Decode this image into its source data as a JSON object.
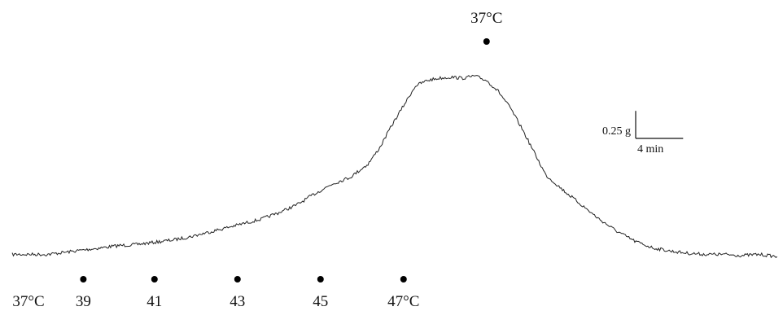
{
  "chart_data": {
    "type": "line",
    "title": "",
    "xlabel": "",
    "ylabel": "",
    "series": [
      {
        "values": [
          [
            0,
            0.0
          ],
          [
            1.5,
            0.0
          ],
          [
            3,
            0.0
          ],
          [
            4.5,
            0.02
          ],
          [
            6,
            0.04
          ],
          [
            7.5,
            0.06
          ],
          [
            9,
            0.08
          ],
          [
            10.5,
            0.09
          ],
          [
            12,
            0.11
          ],
          [
            13.5,
            0.13
          ],
          [
            15,
            0.16
          ],
          [
            16.5,
            0.2
          ],
          [
            18,
            0.24
          ],
          [
            19.5,
            0.28
          ],
          [
            21,
            0.32
          ],
          [
            22.5,
            0.38
          ],
          [
            24,
            0.45
          ],
          [
            25.5,
            0.55
          ],
          [
            27,
            0.64
          ],
          [
            28.5,
            0.7
          ],
          [
            30,
            0.82
          ],
          [
            31,
            0.97
          ],
          [
            32,
            1.17
          ],
          [
            33,
            1.35
          ],
          [
            34,
            1.53
          ],
          [
            35,
            1.58
          ],
          [
            36,
            1.6
          ],
          [
            37,
            1.61
          ],
          [
            38,
            1.6
          ],
          [
            39,
            1.62
          ],
          [
            40,
            1.58
          ],
          [
            41,
            1.48
          ],
          [
            42,
            1.33
          ],
          [
            43,
            1.14
          ],
          [
            44,
            0.93
          ],
          [
            45,
            0.72
          ],
          [
            46.5,
            0.58
          ],
          [
            48,
            0.45
          ],
          [
            49.5,
            0.32
          ],
          [
            51,
            0.21
          ],
          [
            52.5,
            0.12
          ],
          [
            54,
            0.06
          ],
          [
            55.5,
            0.03
          ],
          [
            57,
            0.01
          ],
          [
            58.5,
            0.0
          ],
          [
            60,
            0.0
          ],
          [
            61.5,
            -0.01
          ],
          [
            63,
            0.0
          ],
          [
            64.5,
            -0.02
          ]
        ]
      }
    ],
    "temperature_marks": [
      {
        "label": "37°C",
        "x": 0,
        "dot": false
      },
      {
        "label": "39",
        "x": 6,
        "dot": true
      },
      {
        "label": "41",
        "x": 12,
        "dot": true
      },
      {
        "label": "43",
        "x": 19,
        "dot": true
      },
      {
        "label": "45",
        "x": 26,
        "dot": true
      },
      {
        "label": "47°C",
        "x": 33,
        "dot": true
      }
    ],
    "top_mark": {
      "label": "37°C",
      "x": 40,
      "dot": true
    },
    "scale_bar": {
      "y_value": 0.25,
      "y_label": "0.25 g",
      "x_value": 4,
      "x_label": "4 min"
    },
    "xlim": [
      0,
      65
    ],
    "ylim": [
      -0.1,
      1.8
    ],
    "grid": false,
    "legend": "none",
    "colors": {
      "trace": "#222222",
      "markers": "#000000",
      "text": "#111111"
    }
  }
}
